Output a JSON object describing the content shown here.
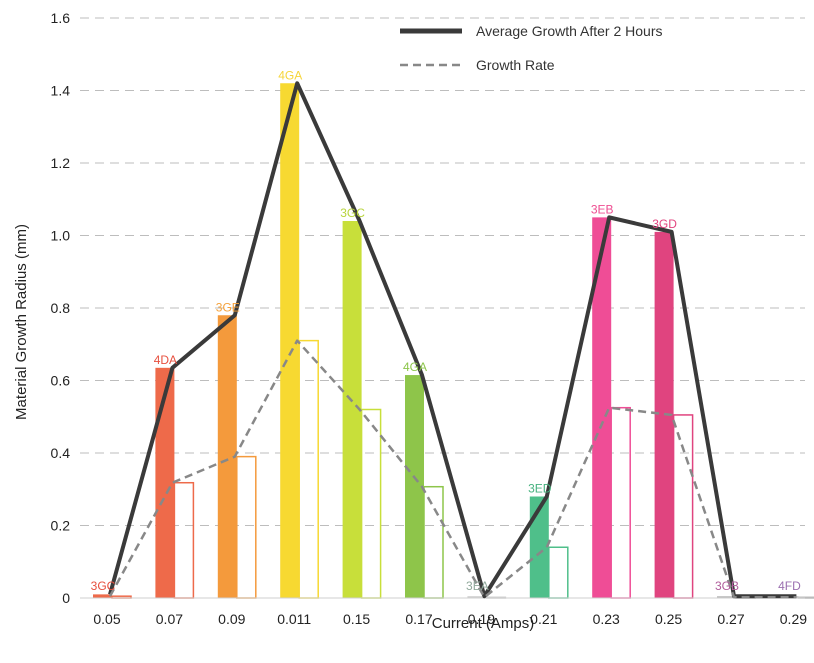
{
  "chart_data": {
    "type": "bar",
    "xlabel": "Current (Amps)",
    "ylabel": "Material Growth Radius (mm)",
    "ylim": [
      0,
      1.6
    ],
    "yticks": [
      "0",
      "0.2",
      "0.4",
      "0.6",
      "0.8",
      "1.0",
      "1.2",
      "1.4",
      "1.6"
    ],
    "categories": [
      "0.05",
      "0.07",
      "0.09",
      "0.011",
      "0.15",
      "0.17",
      "0.19",
      "0.21",
      "0.23",
      "0.25",
      "0.27",
      "0.29"
    ],
    "bar_labels": [
      "3GC",
      "4DA",
      "3GE",
      "4GA",
      "3GC",
      "4GA",
      "3EA",
      "3ED",
      "3EB",
      "3GD",
      "3GB",
      "4FD"
    ],
    "bar_colors": [
      "#ee6a4a",
      "#ee6a4a",
      "#f49a3c",
      "#f7d931",
      "#c8df3a",
      "#8ec54a",
      "#cfcfcf",
      "#4fbf8a",
      "#ef4d96",
      "#e0447f",
      "#bbbbbb",
      "#bbbbbb"
    ],
    "label_colors": [
      "#e7503f",
      "#e7503f",
      "#f5a23c",
      "#f6d53a",
      "#b8d43c",
      "#8cc54a",
      "#8fa89a",
      "#47b27f",
      "#ee4d91",
      "#e2447f",
      "#b05d9b",
      "#9b6fb0"
    ],
    "series": [
      {
        "name": "Average Growth After 2 Hours",
        "style": "solid",
        "color": "#3a3a3a",
        "values": [
          0.01,
          0.635,
          0.78,
          1.42,
          1.04,
          0.615,
          0.005,
          0.28,
          1.05,
          1.01,
          0.005,
          0.005
        ]
      },
      {
        "name": "Growth Rate",
        "style": "dashed",
        "color": "#888888",
        "values": [
          0.005,
          0.318,
          0.39,
          0.71,
          0.52,
          0.307,
          0.002,
          0.14,
          0.525,
          0.505,
          0.002,
          0.002
        ]
      }
    ],
    "legend_position": "top-right",
    "grid": "horizontal dashed"
  }
}
